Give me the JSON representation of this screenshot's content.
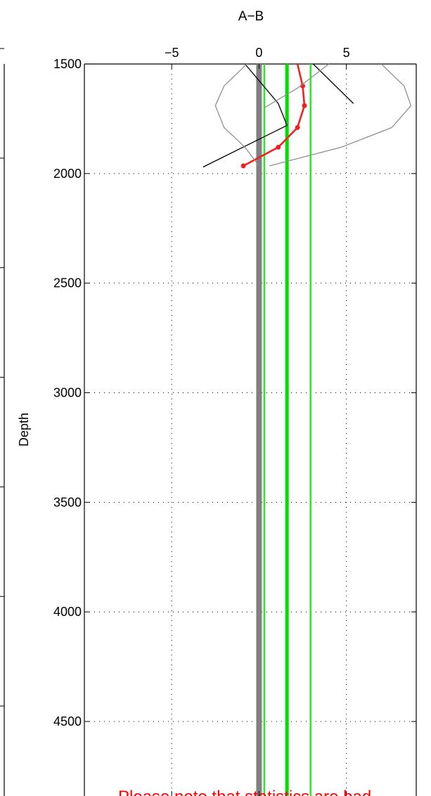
{
  "chart_data": {
    "type": "line",
    "title": "A−B",
    "xlabel": "",
    "ylabel": "Depth",
    "xlim": [
      -10,
      9
    ],
    "ylim": [
      1500,
      4840
    ],
    "y_reversed": true,
    "x_axis_position": "top",
    "x_ticks": [
      -5,
      0,
      5
    ],
    "x_tick_labels": [
      "−5",
      "0",
      "5"
    ],
    "y_ticks": [
      1500,
      2000,
      2500,
      3000,
      3500,
      4000,
      4500
    ],
    "y_tick_labels": [
      "1500",
      "2000",
      "2500",
      "3000",
      "3500",
      "4000",
      "4500"
    ],
    "grid": true,
    "colors": {
      "mean_profile": "#ee2222",
      "reference_line": "#808080",
      "bias_line": "#00dd00",
      "spread_line": "#22ee22",
      "envelope": "#909090",
      "black_profile": "#000000",
      "note": "#ff0000"
    },
    "series": [
      {
        "style": "red-line-markers",
        "points": [
          {
            "x": 2.2,
            "y": 1500
          },
          {
            "x": 2.5,
            "y": 1600
          },
          {
            "x": 2.6,
            "y": 1690
          },
          {
            "x": 2.2,
            "y": 1790
          },
          {
            "x": 1.1,
            "y": 1880
          },
          {
            "x": -0.9,
            "y": 1965
          }
        ]
      },
      {
        "style": "black-line",
        "points": [
          {
            "x": -0.8,
            "y": 1500
          },
          {
            "x": 1.1,
            "y": 1680
          },
          {
            "x": 1.6,
            "y": 1780
          },
          {
            "x": -3.2,
            "y": 1970
          }
        ]
      },
      {
        "style": "black-line",
        "points": [
          {
            "x": 3.1,
            "y": 1500
          },
          {
            "x": 5.4,
            "y": 1680
          }
        ]
      },
      {
        "style": "gray-envelope",
        "points": [
          {
            "x": 7.0,
            "y": 1500
          },
          {
            "x": 8.3,
            "y": 1600
          },
          {
            "x": 8.7,
            "y": 1690
          },
          {
            "x": 7.6,
            "y": 1790
          },
          {
            "x": 4.7,
            "y": 1880
          },
          {
            "x": 0.6,
            "y": 1965
          }
        ]
      },
      {
        "style": "gray-envelope",
        "points": [
          {
            "x": -0.7,
            "y": 1500
          },
          {
            "x": -2.0,
            "y": 1600
          },
          {
            "x": -2.5,
            "y": 1690
          },
          {
            "x": -2.0,
            "y": 1790
          },
          {
            "x": -0.8,
            "y": 1880
          },
          {
            "x": 0.0,
            "y": 1965
          }
        ]
      },
      {
        "style": "gray-envelope",
        "points": [
          {
            "x": 4.0,
            "y": 1500
          },
          {
            "x": 2.2,
            "y": 1610
          },
          {
            "x": 0.3,
            "y": 1700
          }
        ]
      }
    ],
    "vertical_lines": [
      {
        "x": 0.0,
        "style": "reference"
      },
      {
        "x": 1.6,
        "style": "bias"
      },
      {
        "x": 0.3,
        "style": "spread"
      },
      {
        "x": 2.95,
        "style": "spread"
      }
    ],
    "annotation": "Please note that statistics are bad"
  }
}
